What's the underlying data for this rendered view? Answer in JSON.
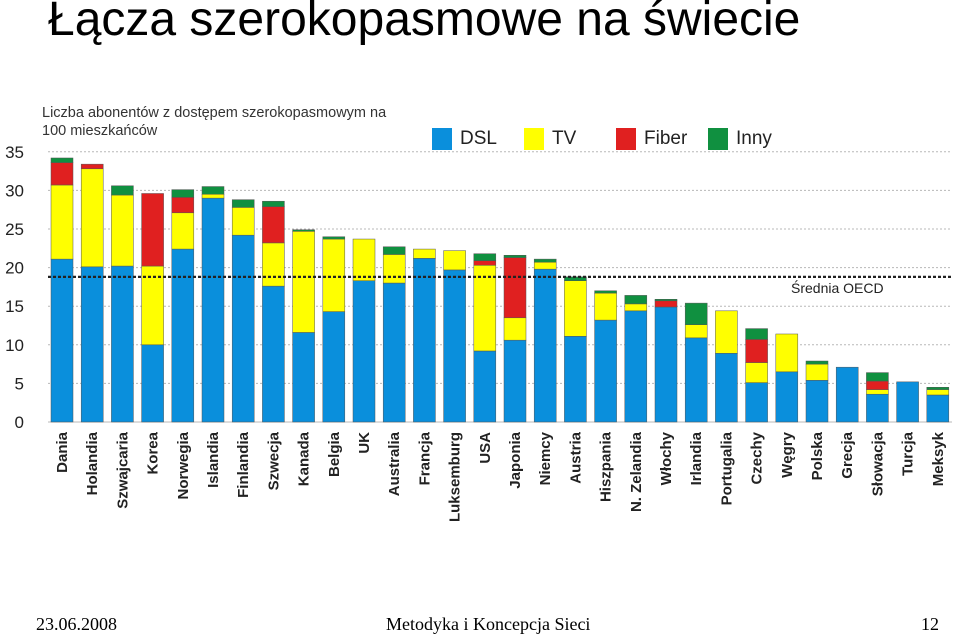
{
  "slide": {
    "title": "Łącza szerokopasmowe na świecie",
    "date": "23.06.2008",
    "footer_center": "Metodyka i Koncepcja Sieci",
    "page_number": "12"
  },
  "chart_data": {
    "type": "bar",
    "stacked": true,
    "note": "Liczba abonentów z dostępem szerokopasmowym na 100 mieszkańców",
    "categories": [
      "Dania",
      "Holandia",
      "Szwajcaria",
      "Korea",
      "Norwegia",
      "Islandia",
      "Finlandia",
      "Szwecja",
      "Kanada",
      "Belgia",
      "UK",
      "Australia",
      "Francja",
      "Luksemburg",
      "USA",
      "Japonia",
      "Niemcy",
      "Austria",
      "Hiszpania",
      "N. Zelandia",
      "Włochy",
      "Irlandia",
      "Portugalia",
      "Czechy",
      "Węgry",
      "Polska",
      "Grecja",
      "Słowacja",
      "Turcja",
      "Meksyk"
    ],
    "series": [
      {
        "name": "DSL",
        "color": "#0a8fdc",
        "values": [
          21.1,
          20.1,
          20.2,
          10.0,
          22.4,
          29.0,
          24.2,
          17.6,
          11.6,
          14.3,
          18.3,
          18.0,
          21.2,
          19.7,
          9.2,
          10.6,
          19.8,
          11.1,
          13.2,
          14.4,
          14.9,
          10.9,
          8.9,
          5.1,
          6.5,
          5.4,
          7.1,
          3.6,
          5.2,
          3.5
        ]
      },
      {
        "name": "TV",
        "color": "#ffff00",
        "values": [
          9.6,
          12.7,
          9.2,
          10.2,
          4.7,
          0.5,
          3.6,
          5.6,
          13.1,
          9.4,
          5.4,
          3.7,
          1.2,
          2.5,
          11.1,
          2.9,
          0.9,
          7.2,
          3.5,
          0.9,
          0,
          1.7,
          5.5,
          2.6,
          4.9,
          2.1,
          0,
          0.6,
          0,
          0.7
        ]
      },
      {
        "name": "Fiber",
        "color": "#e02020",
        "values": [
          2.9,
          0.6,
          0,
          9.4,
          2.0,
          0,
          0,
          4.7,
          0,
          0,
          0,
          0,
          0,
          0,
          0.6,
          7.8,
          0,
          0,
          0,
          0,
          0.8,
          0,
          0,
          3.0,
          0,
          0,
          0,
          1.1,
          0,
          0
        ]
      },
      {
        "name": "Inny",
        "color": "#109040",
        "values": [
          0.6,
          0,
          1.2,
          0,
          1.0,
          1.0,
          1.0,
          0.7,
          0.2,
          0.3,
          0,
          1.0,
          0,
          0,
          0.9,
          0.3,
          0.4,
          0.5,
          0.3,
          1.1,
          0.2,
          2.8,
          0,
          1.4,
          0,
          0.4,
          0,
          1.1,
          0,
          0.3
        ]
      }
    ],
    "yticks": [
      0,
      5,
      10,
      15,
      20,
      25,
      30,
      35
    ],
    "ylim": [
      0,
      36
    ],
    "reference_line": {
      "label": "Średnia OECD",
      "value": 18.8
    },
    "xlabel": "",
    "ylabel": "",
    "grid": true,
    "legend_position": "top"
  }
}
